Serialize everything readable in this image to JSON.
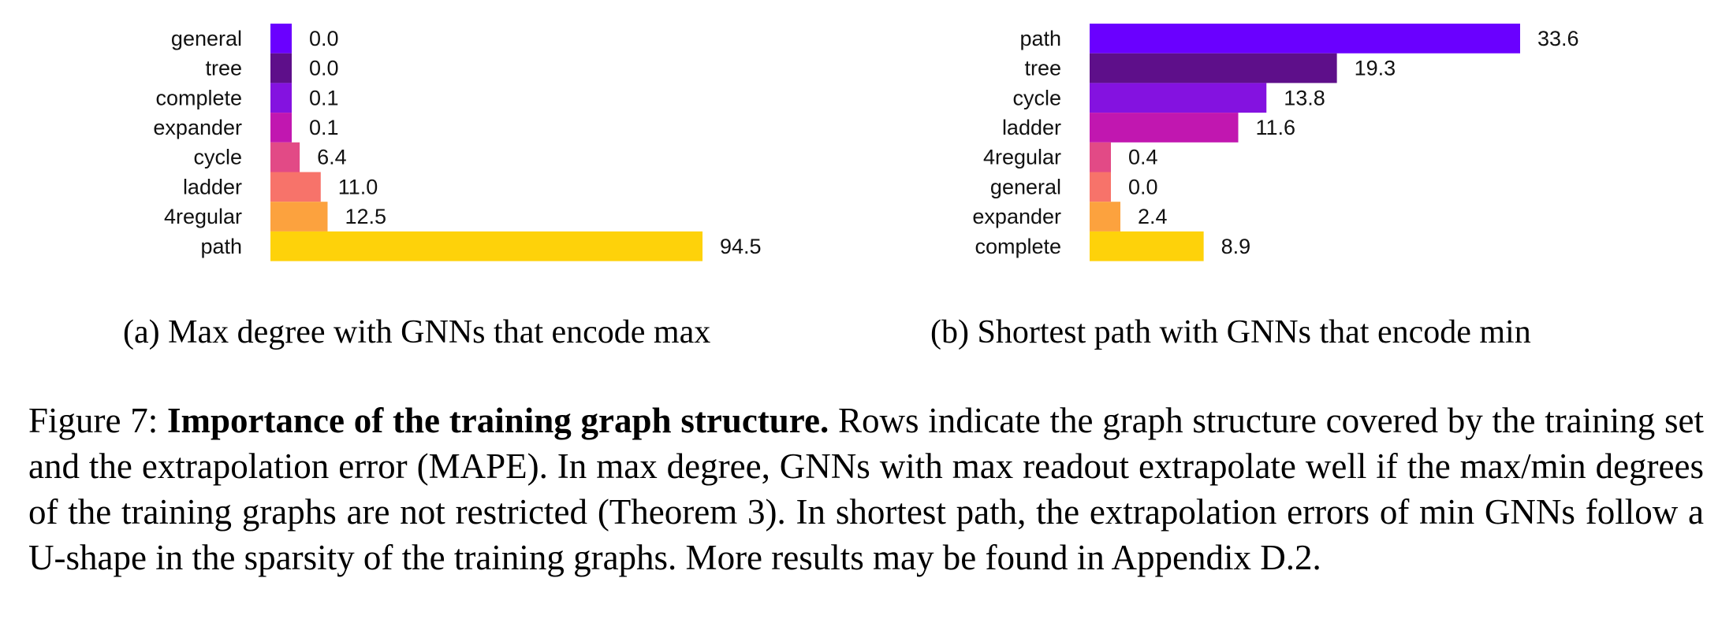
{
  "chart_data": [
    {
      "type": "bar",
      "orientation": "horizontal",
      "categories": [
        "general",
        "tree",
        "complete",
        "expander",
        "cycle",
        "ladder",
        "4regular",
        "path"
      ],
      "values": [
        0.0,
        0.0,
        0.1,
        0.1,
        6.4,
        11.0,
        12.5,
        94.5
      ],
      "value_labels": [
        "0.0",
        "0.0",
        "0.1",
        "0.1",
        "6.4",
        "11.0",
        "12.5",
        "94.5"
      ],
      "colors": [
        "#6a00ff",
        "#5e0f8a",
        "#8412e0",
        "#c117b0",
        "#e24a86",
        "#f7736a",
        "#fca23e",
        "#fed20a"
      ],
      "xlim": [
        0,
        94.5
      ],
      "grid": false,
      "subcaption": "(a) Max degree with GNNs that encode max"
    },
    {
      "type": "bar",
      "orientation": "horizontal",
      "categories": [
        "path",
        "tree",
        "cycle",
        "ladder",
        "4regular",
        "general",
        "expander",
        "complete"
      ],
      "values": [
        33.6,
        19.3,
        13.8,
        11.6,
        0.4,
        0.0,
        2.4,
        8.9
      ],
      "value_labels": [
        "33.6",
        "19.3",
        "13.8",
        "11.6",
        "0.4",
        "0.0",
        "2.4",
        "8.9"
      ],
      "colors": [
        "#6a00ff",
        "#5e0f8a",
        "#8412e0",
        "#c117b0",
        "#e24a86",
        "#f7736a",
        "#fca23e",
        "#fed20a"
      ],
      "xlim": [
        0,
        33.6
      ],
      "grid": false,
      "subcaption": "(b) Shortest path with GNNs that encode min"
    }
  ],
  "caption": {
    "prefix": "Figure 7: ",
    "bold": "Importance of the training graph structure.",
    "text": " Rows indicate the graph structure covered by the training set and the extrapolation error (MAPE). In max degree, GNNs with max readout extrapolate well if the max/min degrees of the training graphs are not restricted (Theorem 3). In shortest path, the extrapolation errors of min GNNs follow a U-shape in the sparsity of the training graphs. More results may be found in Appendix D.2."
  }
}
